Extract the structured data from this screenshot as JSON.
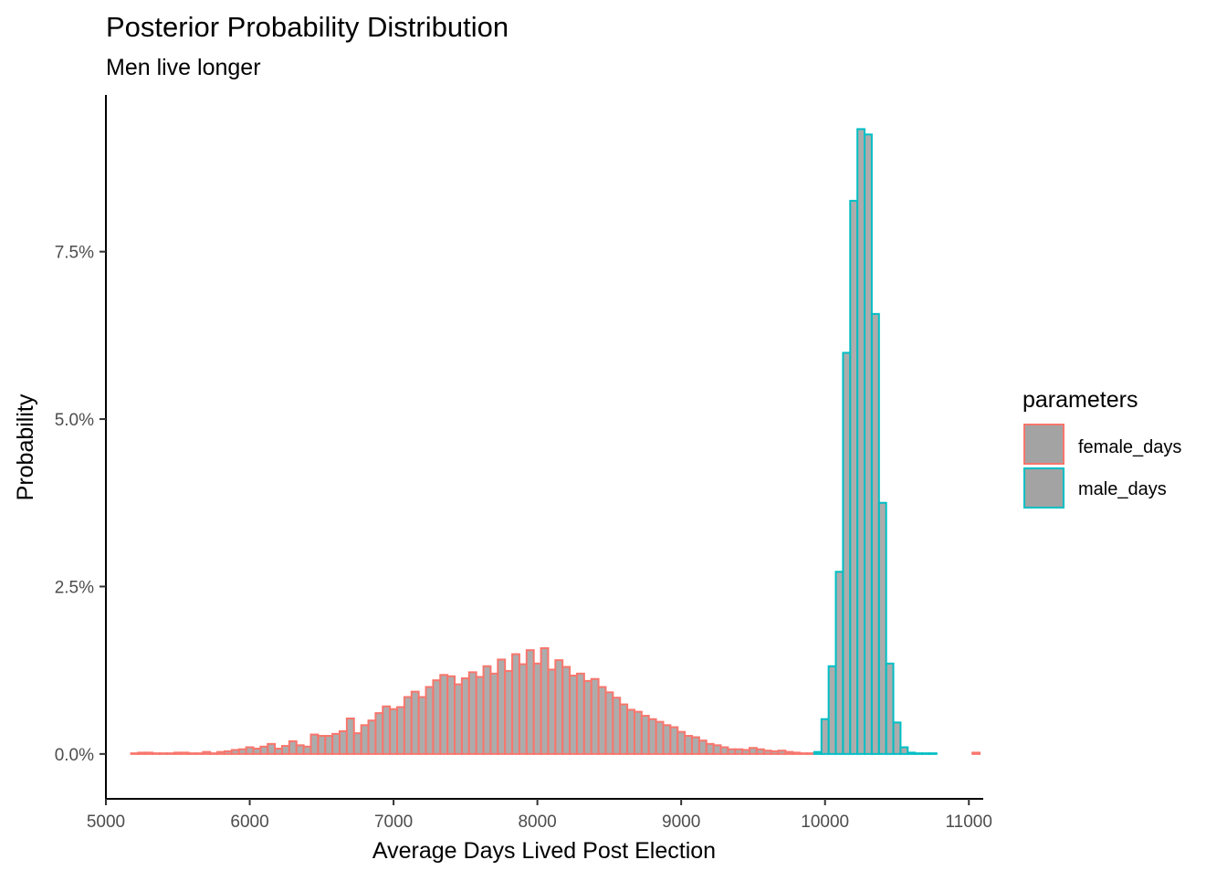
{
  "chart_data": {
    "type": "bar",
    "title": "Posterior Probability Distribution",
    "subtitle": "Men live longer",
    "xlabel": "Average Days Lived Post Election",
    "ylabel": "Probability",
    "xlim": [
      5000,
      11100
    ],
    "ylim": [
      -0.0067,
      0.0984
    ],
    "x_ticks": [
      5000,
      6000,
      7000,
      8000,
      9000,
      10000,
      11000
    ],
    "y_ticks": [
      0,
      0.025,
      0.05,
      0.075
    ],
    "y_tick_labels": [
      "0.0%",
      "2.5%",
      "5.0%",
      "7.5%"
    ],
    "grid": false,
    "bin_width": 50,
    "bar_fill": "#a3a3a3",
    "legend": {
      "title": "parameters",
      "position": "right",
      "entries": [
        {
          "label": "female_days",
          "color": "#f8766d"
        },
        {
          "label": "male_days",
          "color": "#00bfc4"
        }
      ]
    },
    "series": [
      {
        "name": "female_days",
        "color": "#f8766d",
        "x_start": 5175,
        "values": [
          0.0001,
          0.0002,
          0.0002,
          0.0001,
          0.0001,
          0.0001,
          0.0002,
          0.0002,
          0.0001,
          0.0001,
          0.0003,
          0.0001,
          0.0003,
          0.0004,
          0.0006,
          0.0007,
          0.001,
          0.0008,
          0.0011,
          0.0015,
          0.0008,
          0.0012,
          0.0019,
          0.0013,
          0.0011,
          0.0029,
          0.0027,
          0.0027,
          0.003,
          0.0034,
          0.0053,
          0.0031,
          0.0043,
          0.005,
          0.0061,
          0.0071,
          0.0067,
          0.007,
          0.0085,
          0.0093,
          0.0085,
          0.01,
          0.011,
          0.0118,
          0.0116,
          0.0104,
          0.0113,
          0.0122,
          0.0115,
          0.0131,
          0.012,
          0.0141,
          0.0124,
          0.0149,
          0.0134,
          0.0155,
          0.0135,
          0.0158,
          0.0126,
          0.014,
          0.013,
          0.0117,
          0.012,
          0.0109,
          0.0112,
          0.01,
          0.0092,
          0.0084,
          0.0074,
          0.0066,
          0.0063,
          0.0057,
          0.0052,
          0.0048,
          0.0043,
          0.004,
          0.0033,
          0.0027,
          0.0025,
          0.002,
          0.0015,
          0.0013,
          0.001,
          0.0007,
          0.0007,
          0.0006,
          0.0009,
          0.0007,
          0.0005,
          0.0004,
          0.0005,
          0.0003,
          0.0002,
          0.0001,
          0.0001,
          0.0,
          0.0,
          0.0,
          0.0,
          0.0,
          0.0,
          0.0,
          0.0,
          0.0,
          0.0,
          0.0,
          0.0,
          0.0,
          0.0,
          0.0,
          0.0,
          0.0,
          0.0,
          0.0,
          0.0,
          0.0,
          0.0,
          0.0002
        ]
      },
      {
        "name": "male_days",
        "color": "#00bfc4",
        "x_start": 9925,
        "values": [
          0.0003,
          0.0052,
          0.0131,
          0.0272,
          0.0599,
          0.0826,
          0.0933,
          0.0925,
          0.0657,
          0.0375,
          0.0135,
          0.0047,
          0.001,
          0.0002,
          0.0001,
          0.0001,
          0.0001
        ]
      }
    ]
  }
}
